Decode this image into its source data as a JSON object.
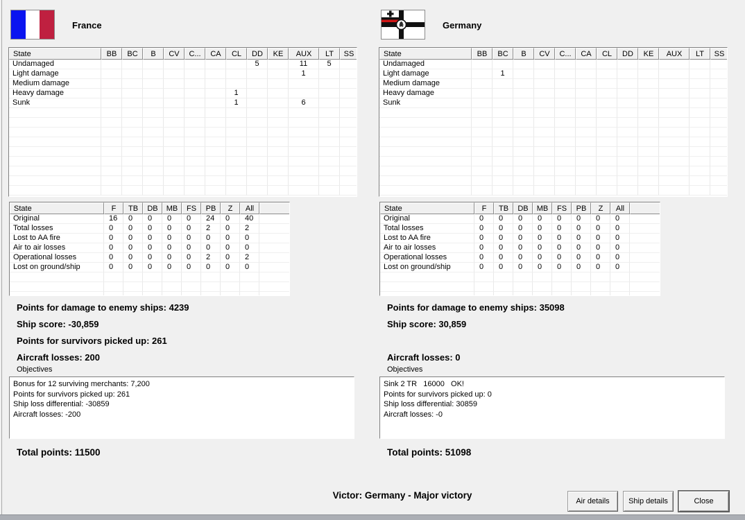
{
  "ship_table": {
    "columns": [
      "State",
      "BB",
      "BC",
      "B",
      "CV",
      "C...",
      "CA",
      "CL",
      "DD",
      "KE",
      "AUX",
      "LT",
      "SS"
    ],
    "row_labels": [
      "Undamaged",
      "Light damage",
      "Medium damage",
      "Heavy damage",
      "Sunk"
    ]
  },
  "air_table": {
    "columns": [
      "State",
      "F",
      "TB",
      "DB",
      "MB",
      "FS",
      "PB",
      "Z",
      "All",
      ""
    ],
    "row_labels": [
      "Original",
      "Total losses",
      "Lost to AA fire",
      "Air to air losses",
      "Operational losses",
      "Lost on ground/ship"
    ]
  },
  "sides": [
    {
      "name": "France",
      "flag": "france",
      "ship_values": [
        [
          "",
          "",
          "",
          "",
          "",
          "",
          "",
          "5",
          "",
          "11",
          "5",
          ""
        ],
        [
          "",
          "",
          "",
          "",
          "",
          "",
          "",
          "",
          "",
          "1",
          "",
          ""
        ],
        [
          "",
          "",
          "",
          "",
          "",
          "",
          "",
          "",
          "",
          "",
          "",
          ""
        ],
        [
          "",
          "",
          "",
          "",
          "",
          "",
          "1",
          "",
          "",
          "",
          "",
          ""
        ],
        [
          "",
          "",
          "",
          "",
          "",
          "",
          "1",
          "",
          "",
          "6",
          "",
          ""
        ]
      ],
      "air_values": [
        [
          "16",
          "0",
          "0",
          "0",
          "0",
          "24",
          "0",
          "40"
        ],
        [
          "0",
          "0",
          "0",
          "0",
          "0",
          "2",
          "0",
          "2"
        ],
        [
          "0",
          "0",
          "0",
          "0",
          "0",
          "0",
          "0",
          "0"
        ],
        [
          "0",
          "0",
          "0",
          "0",
          "0",
          "0",
          "0",
          "0"
        ],
        [
          "0",
          "0",
          "0",
          "0",
          "0",
          "2",
          "0",
          "2"
        ],
        [
          "0",
          "0",
          "0",
          "0",
          "0",
          "0",
          "0",
          "0"
        ]
      ],
      "points_lines": [
        "Points for damage to enemy ships: 4239",
        "Ship score: -30,859",
        "Points for survivors picked up: 261",
        "Aircraft losses: 200"
      ],
      "objectives_label": "Objectives",
      "objectives": [
        "Bonus for 12 surviving merchants: 7,200",
        "Points for survivors picked up: 261",
        "Ship loss differential: -30859",
        "Aircraft losses: -200"
      ],
      "total_points": "Total points: 11500"
    },
    {
      "name": "Germany",
      "flag": "germany",
      "ship_values": [
        [
          "",
          "",
          "",
          "",
          "",
          "",
          "",
          "",
          "",
          "",
          "",
          ""
        ],
        [
          "",
          "1",
          "",
          "",
          "",
          "",
          "",
          "",
          "",
          "",
          "",
          ""
        ],
        [
          "",
          "",
          "",
          "",
          "",
          "",
          "",
          "",
          "",
          "",
          "",
          ""
        ],
        [
          "",
          "",
          "",
          "",
          "",
          "",
          "",
          "",
          "",
          "",
          "",
          ""
        ],
        [
          "",
          "",
          "",
          "",
          "",
          "",
          "",
          "",
          "",
          "",
          "",
          ""
        ]
      ],
      "air_values": [
        [
          "0",
          "0",
          "0",
          "0",
          "0",
          "0",
          "0",
          "0"
        ],
        [
          "0",
          "0",
          "0",
          "0",
          "0",
          "0",
          "0",
          "0"
        ],
        [
          "0",
          "0",
          "0",
          "0",
          "0",
          "0",
          "0",
          "0"
        ],
        [
          "0",
          "0",
          "0",
          "0",
          "0",
          "0",
          "0",
          "0"
        ],
        [
          "0",
          "0",
          "0",
          "0",
          "0",
          "0",
          "0",
          "0"
        ],
        [
          "0",
          "0",
          "0",
          "0",
          "0",
          "0",
          "0",
          "0"
        ]
      ],
      "points_lines": [
        "Points for damage to enemy ships: 35098",
        "Ship score: 30,859",
        "",
        "Aircraft losses: 0"
      ],
      "objectives_label": "Objectives",
      "objectives": [
        "Sink 2 TR   16000   OK!",
        "Points for survivors picked up: 0",
        "Ship loss differential: 30859",
        "Aircraft losses: -0"
      ],
      "total_points": "Total points: 51098"
    }
  ],
  "footer": {
    "victor": "Victor: Germany - Major victory",
    "buttons": [
      "Air details",
      "Ship details",
      "Close"
    ]
  },
  "colors": {
    "dialog_bg": "#f0f0f0",
    "france_blue": "#0a14f0",
    "france_red": "#bf2040",
    "germany_red": "#d01616"
  }
}
